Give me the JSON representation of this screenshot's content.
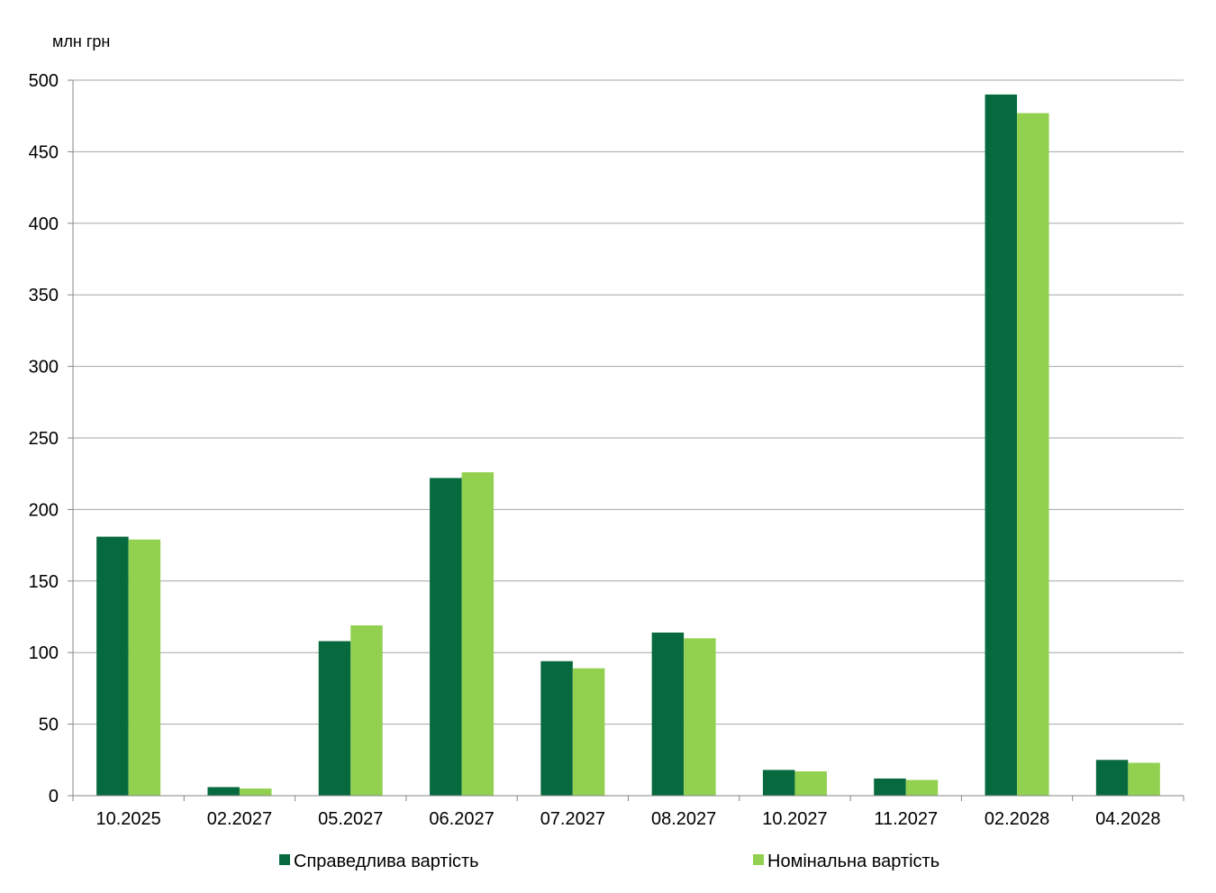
{
  "chart_data": {
    "type": "bar",
    "unit_label": "млн  грн",
    "categories": [
      "10.2025",
      "02.2027",
      "05.2027",
      "06.2027",
      "07.2027",
      "08.2027",
      "10.2027",
      "11.2027",
      "02.2028",
      "04.2028"
    ],
    "series": [
      {
        "name": "Справедлива  вартість",
        "color": "#076a3f",
        "values": [
          181,
          6,
          108,
          222,
          94,
          114,
          18,
          12,
          490,
          25
        ]
      },
      {
        "name": "Номінальна  вартість",
        "color": "#92d050",
        "values": [
          179,
          5,
          119,
          226,
          89,
          110,
          17,
          11,
          477,
          23
        ]
      }
    ],
    "ylim": [
      0,
      500
    ],
    "yticks": [
      0,
      50,
      100,
      150,
      200,
      250,
      300,
      350,
      400,
      450,
      500
    ],
    "grid": true,
    "legend_position": "bottom"
  }
}
